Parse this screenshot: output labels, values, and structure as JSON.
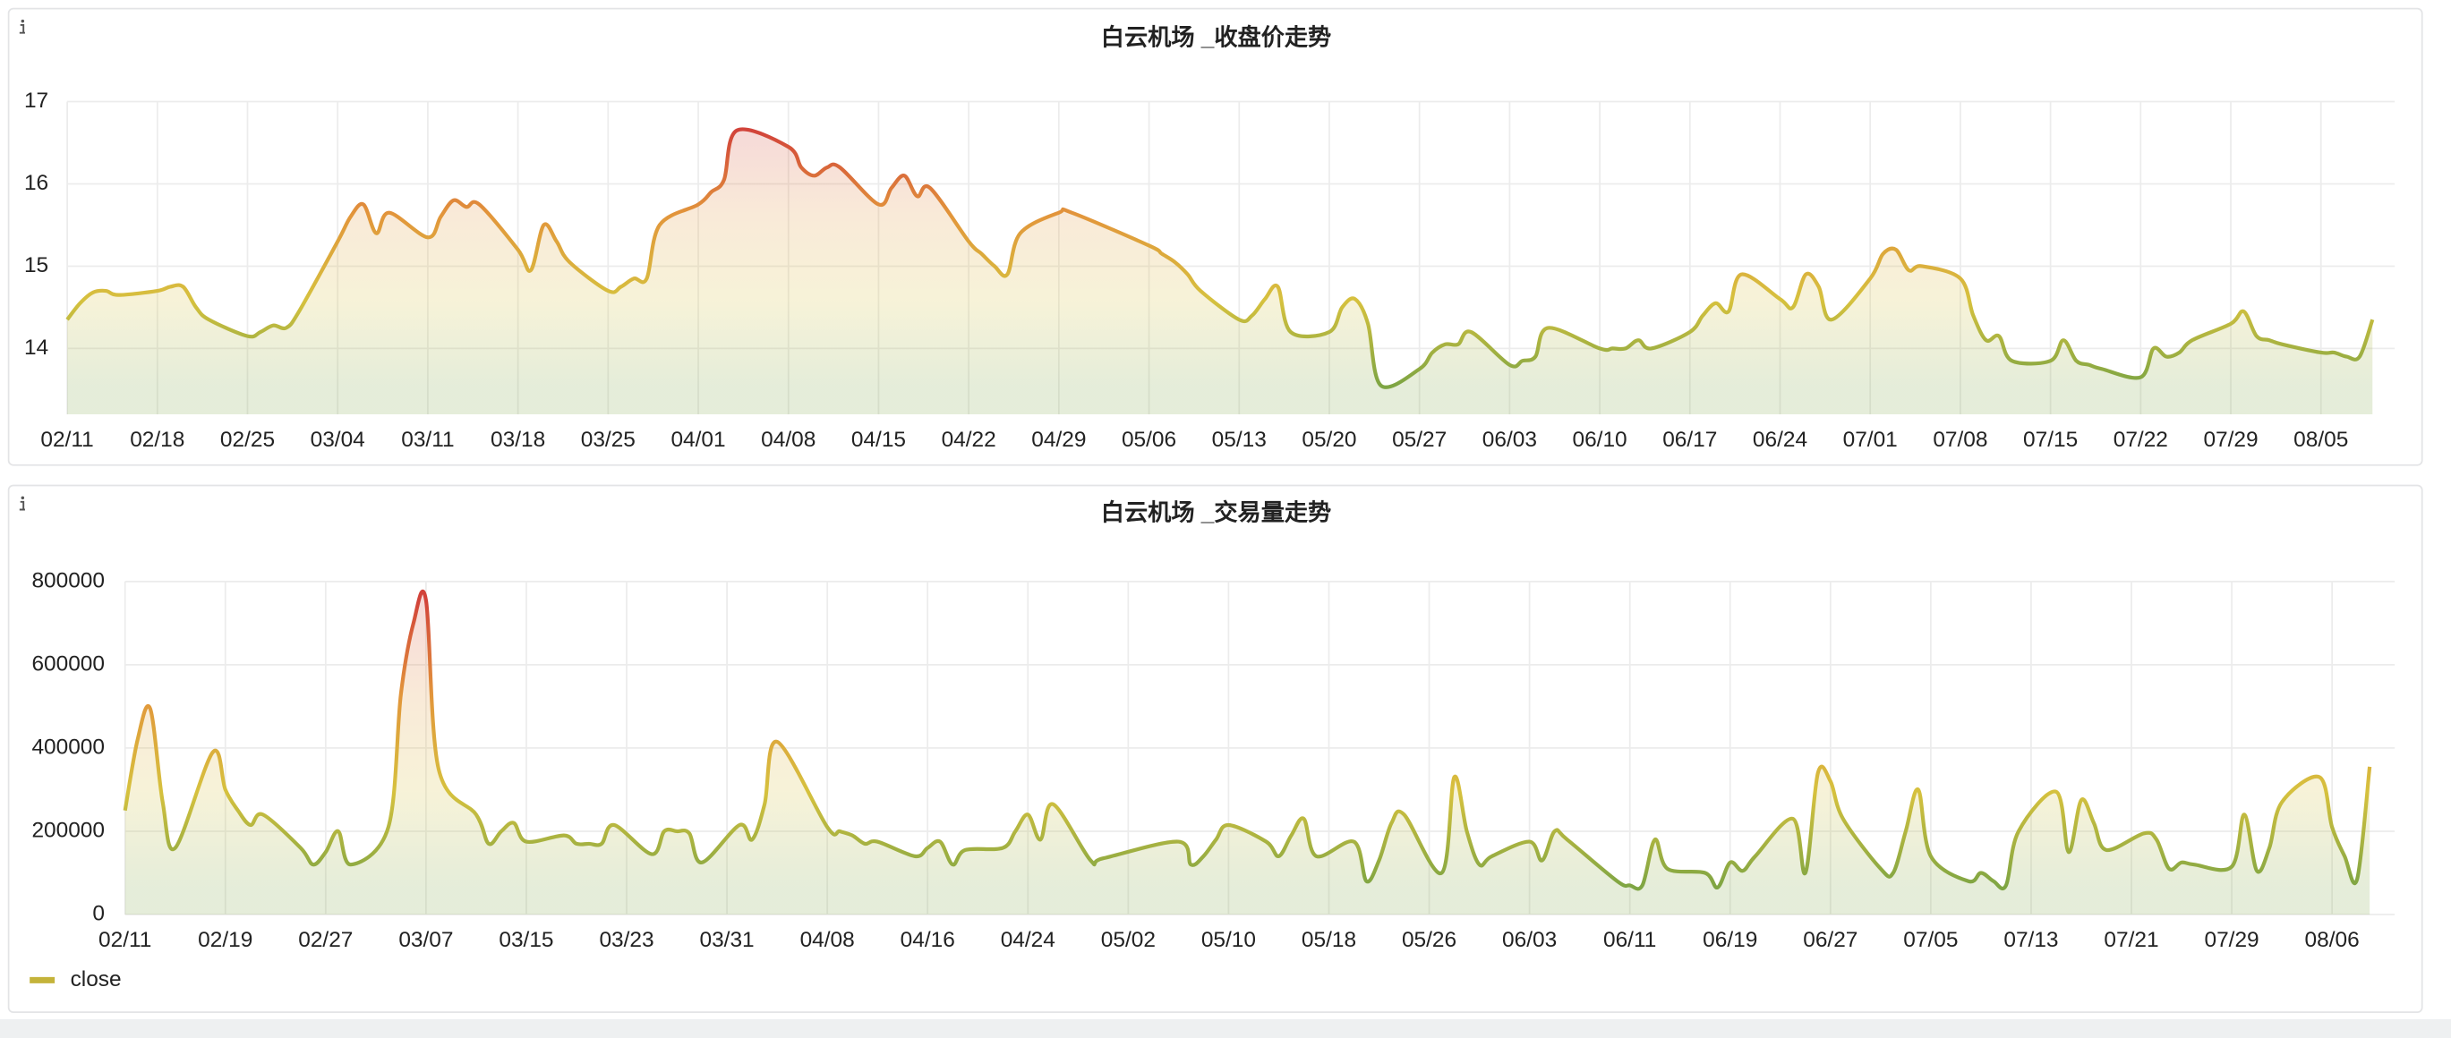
{
  "chart_data": [
    {
      "type": "line",
      "title": "白云机场 _收盘价走势",
      "x": [
        "02/11",
        "02/12",
        "02/13",
        "02/14",
        "02/15",
        "02/18",
        "02/19",
        "02/20",
        "02/21",
        "02/22",
        "02/25",
        "02/26",
        "02/27",
        "02/28",
        "03/01",
        "03/04",
        "03/05",
        "03/06",
        "03/07",
        "03/08",
        "03/11",
        "03/12",
        "03/13",
        "03/14",
        "03/15",
        "03/18",
        "03/19",
        "03/20",
        "03/21",
        "03/22",
        "03/25",
        "03/26",
        "03/27",
        "03/28",
        "03/29",
        "04/01",
        "04/02",
        "04/03",
        "04/04",
        "04/08",
        "04/09",
        "04/10",
        "04/11",
        "04/12",
        "04/15",
        "04/16",
        "04/17",
        "04/18",
        "04/19",
        "04/22",
        "04/23",
        "04/24",
        "04/25",
        "04/26",
        "04/29",
        "04/30",
        "05/06",
        "05/07",
        "05/08",
        "05/09",
        "05/10",
        "05/13",
        "05/14",
        "05/15",
        "05/16",
        "05/17",
        "05/20",
        "05/21",
        "05/22",
        "05/23",
        "05/24",
        "05/27",
        "05/28",
        "05/29",
        "05/30",
        "05/31",
        "06/03",
        "06/04",
        "06/05",
        "06/06",
        "06/10",
        "06/11",
        "06/12",
        "06/13",
        "06/14",
        "06/17",
        "06/18",
        "06/19",
        "06/20",
        "06/21",
        "06/24",
        "06/25",
        "06/26",
        "06/27",
        "06/28",
        "07/01",
        "07/02",
        "07/03",
        "07/04",
        "07/05",
        "07/08",
        "07/09",
        "07/10",
        "07/11",
        "07/12",
        "07/15",
        "07/16",
        "07/17",
        "07/18",
        "07/19",
        "07/22",
        "07/23",
        "07/24",
        "07/25",
        "07/26",
        "07/29",
        "07/30",
        "07/31",
        "08/01",
        "08/02",
        "08/05",
        "08/06",
        "08/07",
        "08/08",
        "08/09"
      ],
      "series": [
        {
          "values": [
            14.35,
            14.55,
            14.68,
            14.7,
            14.65,
            14.7,
            14.75,
            14.75,
            14.5,
            14.35,
            14.15,
            14.2,
            14.28,
            14.25,
            14.45,
            15.3,
            15.6,
            15.75,
            15.4,
            15.65,
            15.35,
            15.6,
            15.8,
            15.72,
            15.75,
            15.2,
            14.95,
            15.5,
            15.3,
            15.05,
            14.7,
            14.75,
            14.85,
            14.85,
            15.5,
            15.75,
            15.9,
            16.05,
            16.65,
            16.45,
            16.2,
            16.1,
            16.2,
            16.2,
            15.75,
            15.95,
            16.1,
            15.85,
            15.95,
            15.3,
            15.15,
            15.0,
            14.9,
            15.4,
            15.65,
            15.65,
            15.25,
            15.15,
            15.05,
            14.9,
            14.7,
            14.35,
            14.4,
            14.6,
            14.75,
            14.2,
            14.2,
            14.5,
            14.6,
            14.3,
            13.55,
            13.75,
            13.95,
            14.05,
            14.05,
            14.2,
            13.8,
            13.85,
            13.9,
            14.25,
            14.0,
            14.0,
            14.0,
            14.1,
            14.0,
            14.2,
            14.4,
            14.55,
            14.45,
            14.9,
            14.6,
            14.5,
            14.9,
            14.75,
            14.35,
            14.85,
            15.15,
            15.2,
            14.95,
            15.0,
            14.85,
            14.4,
            14.1,
            14.15,
            13.85,
            13.85,
            14.1,
            13.85,
            13.8,
            13.75,
            13.65,
            14.0,
            13.9,
            13.95,
            14.1,
            14.3,
            14.45,
            14.15,
            14.1,
            14.05,
            13.95,
            13.95,
            13.9,
            13.9,
            14.35
          ]
        }
      ],
      "gradient": [
        "#7ea543",
        "#d6c13e",
        "#e2963b",
        "#d2433a"
      ],
      "xlim": [
        "02/11",
        "08/10"
      ],
      "xticks": [
        "02/11",
        "02/18",
        "02/25",
        "03/04",
        "03/11",
        "03/18",
        "03/25",
        "04/01",
        "04/08",
        "04/15",
        "04/22",
        "04/29",
        "05/06",
        "05/13",
        "05/20",
        "05/27",
        "06/03",
        "06/10",
        "06/17",
        "06/24",
        "07/01",
        "07/08",
        "07/15",
        "07/22",
        "07/29",
        "08/05"
      ],
      "ylim": [
        13.2,
        17
      ],
      "yticks": [
        14,
        15,
        16,
        17
      ],
      "grid": true
    },
    {
      "type": "line",
      "title": "白云机场 _交易量走势",
      "x": [
        "02/11",
        "02/12",
        "02/13",
        "02/14",
        "02/15",
        "02/18",
        "02/19",
        "02/20",
        "02/21",
        "02/22",
        "02/25",
        "02/26",
        "02/27",
        "02/28",
        "03/01",
        "03/04",
        "03/05",
        "03/06",
        "03/07",
        "03/08",
        "03/11",
        "03/12",
        "03/13",
        "03/14",
        "03/15",
        "03/18",
        "03/19",
        "03/20",
        "03/21",
        "03/22",
        "03/25",
        "03/26",
        "03/27",
        "03/28",
        "03/29",
        "04/01",
        "04/02",
        "04/03",
        "04/04",
        "04/08",
        "04/09",
        "04/10",
        "04/11",
        "04/12",
        "04/15",
        "04/16",
        "04/17",
        "04/18",
        "04/19",
        "04/22",
        "04/23",
        "04/24",
        "04/25",
        "04/26",
        "04/29",
        "04/30",
        "05/06",
        "05/07",
        "05/08",
        "05/09",
        "05/10",
        "05/13",
        "05/14",
        "05/15",
        "05/16",
        "05/17",
        "05/20",
        "05/21",
        "05/22",
        "05/23",
        "05/24",
        "05/27",
        "05/28",
        "05/29",
        "05/30",
        "05/31",
        "06/03",
        "06/04",
        "06/05",
        "06/06",
        "06/10",
        "06/11",
        "06/12",
        "06/13",
        "06/14",
        "06/17",
        "06/18",
        "06/19",
        "06/20",
        "06/21",
        "06/24",
        "06/25",
        "06/26",
        "06/27",
        "06/28",
        "07/01",
        "07/02",
        "07/03",
        "07/04",
        "07/05",
        "07/08",
        "07/09",
        "07/10",
        "07/11",
        "07/12",
        "07/15",
        "07/16",
        "07/17",
        "07/18",
        "07/19",
        "07/22",
        "07/23",
        "07/24",
        "07/25",
        "07/26",
        "07/29",
        "07/30",
        "07/31",
        "08/01",
        "08/02",
        "08/05",
        "08/06",
        "08/07",
        "08/08",
        "08/09"
      ],
      "series": [
        {
          "name": "close",
          "color": "#c4b33a",
          "values": [
            250000,
            420000,
            495000,
            270000,
            160000,
            390000,
            300000,
            250000,
            215000,
            240000,
            160000,
            120000,
            150000,
            200000,
            120000,
            210000,
            530000,
            700000,
            755000,
            350000,
            240000,
            170000,
            200000,
            220000,
            175000,
            190000,
            170000,
            170000,
            170000,
            215000,
            145000,
            200000,
            200000,
            195000,
            125000,
            215000,
            180000,
            265000,
            415000,
            210000,
            200000,
            190000,
            170000,
            175000,
            140000,
            160000,
            175000,
            120000,
            155000,
            160000,
            200000,
            240000,
            180000,
            265000,
            130000,
            135000,
            175000,
            120000,
            140000,
            180000,
            215000,
            175000,
            140000,
            190000,
            230000,
            140000,
            175000,
            80000,
            130000,
            220000,
            240000,
            100000,
            330000,
            200000,
            120000,
            140000,
            175000,
            130000,
            200000,
            180000,
            80000,
            70000,
            70000,
            180000,
            110000,
            100000,
            65000,
            125000,
            105000,
            140000,
            230000,
            100000,
            340000,
            320000,
            230000,
            110000,
            100000,
            200000,
            300000,
            140000,
            80000,
            100000,
            80000,
            70000,
            200000,
            295000,
            150000,
            275000,
            220000,
            155000,
            195000,
            180000,
            110000,
            125000,
            120000,
            115000,
            240000,
            105000,
            160000,
            270000,
            330000,
            210000,
            140000,
            85000,
            355000
          ]
        }
      ],
      "gradient": [
        "#7ea543",
        "#d6c13e",
        "#e2963b",
        "#d2433a"
      ],
      "xlim": [
        "02/11",
        "08/10"
      ],
      "xticks": [
        "02/11",
        "02/19",
        "02/27",
        "03/07",
        "03/15",
        "03/23",
        "03/31",
        "04/08",
        "04/16",
        "04/24",
        "05/02",
        "05/10",
        "05/18",
        "05/26",
        "06/03",
        "06/11",
        "06/19",
        "06/27",
        "07/05",
        "07/13",
        "07/21",
        "07/29",
        "08/06"
      ],
      "ylim": [
        0,
        800000
      ],
      "yticks": [
        0,
        200000,
        400000,
        600000,
        800000
      ],
      "grid": true,
      "legend": "bottom-left"
    }
  ]
}
